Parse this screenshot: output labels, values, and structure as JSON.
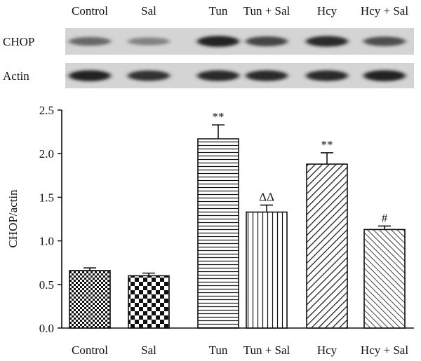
{
  "blot": {
    "lane_labels": [
      "Control",
      "Sal",
      "Tun",
      "Tun + Sal",
      "Hcy",
      "Hcy + Sal"
    ],
    "rows": [
      {
        "label": "CHOP",
        "intensity": [
          0.55,
          0.4,
          0.95,
          0.75,
          0.9,
          0.7
        ]
      },
      {
        "label": "Actin",
        "intensity": [
          0.95,
          0.85,
          0.9,
          0.9,
          0.9,
          0.95
        ]
      }
    ]
  },
  "chart_data": {
    "type": "bar",
    "title": "",
    "xlabel": "",
    "ylabel": "CHOP/actin",
    "categories": [
      "Control",
      "Sal",
      "Tun",
      "Tun + Sal",
      "Hcy",
      "Hcy + Sal"
    ],
    "values": [
      0.66,
      0.6,
      2.17,
      1.33,
      1.88,
      1.13
    ],
    "errors": [
      0.03,
      0.03,
      0.16,
      0.08,
      0.13,
      0.04
    ],
    "annotations": [
      "",
      "",
      "**",
      "ΔΔ",
      "**",
      "#"
    ],
    "patterns": [
      "fine-checker",
      "coarse-checker",
      "horizontal-lines",
      "vertical-lines",
      "diagonal-lines",
      "fine-diagonal-lines"
    ],
    "ylim": [
      0,
      2.5
    ],
    "yticks": [
      "0.0",
      "0.5",
      "1.0",
      "1.5",
      "2.0",
      "2.5"
    ],
    "grid": false,
    "legend": "none",
    "bar_color": "#111111"
  }
}
